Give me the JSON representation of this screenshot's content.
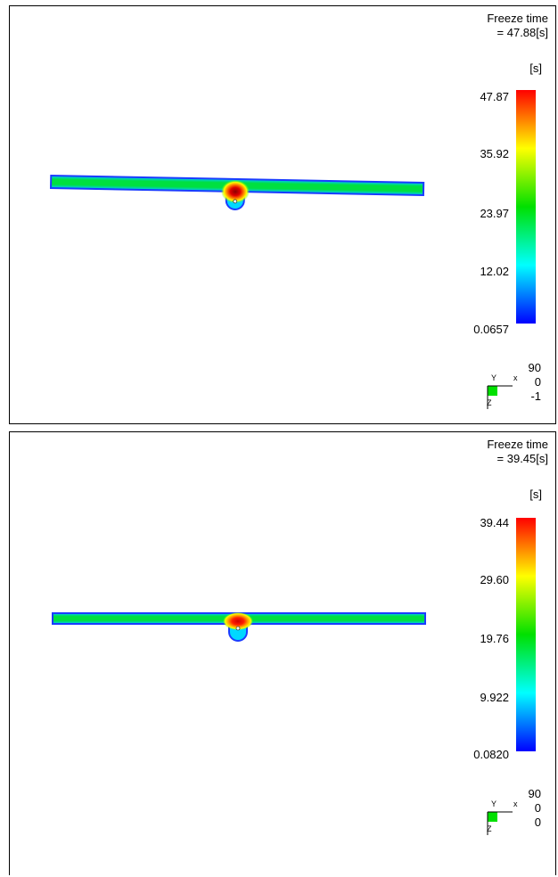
{
  "panels": [
    {
      "title_line1": "Freeze time",
      "title_line2": "= 47.88[s]",
      "unit": "[s]",
      "colorbar": {
        "max": "47.87",
        "t2": "35.92",
        "t3": "23.97",
        "t4": "12.02",
        "min": "0.0657"
      },
      "view": {
        "a": "90",
        "b": "0",
        "c": "-1",
        "y_label": "Y",
        "x_label": "x",
        "z_label": "Z"
      }
    },
    {
      "title_line1": "Freeze time",
      "title_line2": "= 39.45[s]",
      "unit": "[s]",
      "colorbar": {
        "max": "39.44",
        "t2": "29.60",
        "t3": "19.76",
        "t4": "9.922",
        "min": "0.0820"
      },
      "view": {
        "a": "90",
        "b": "0",
        "c": "0",
        "y_label": "Y",
        "x_label": "x",
        "z_label": "Z"
      }
    }
  ],
  "colors": {
    "red": "#ff0000",
    "yellow": "#ffff00",
    "green": "#00e000",
    "cyan": "#00ffff",
    "blue": "#0000ff",
    "border": "#000000",
    "part_edge": "#1a3cff"
  }
}
